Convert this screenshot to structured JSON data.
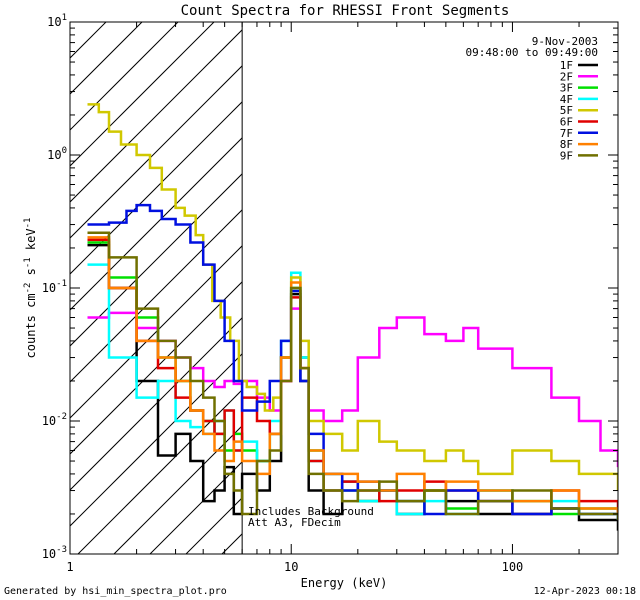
{
  "chart_data": {
    "type": "line",
    "title": "Count Spectra for RHESSI Front Segments",
    "xlabel": "Energy (keV)",
    "ylabel_parts": {
      "a": "counts cm",
      "a_sup": "-2",
      "b": " s",
      "b_sup": "-1",
      "c": " keV",
      "c_sup": "-1"
    },
    "x_scale": "log",
    "y_scale": "log",
    "xlim": [
      1,
      300
    ],
    "ylim": [
      0.001,
      10
    ],
    "x_ticks": [
      {
        "v": 1,
        "label": "1"
      },
      {
        "v": 10,
        "label": "10"
      },
      {
        "v": 100,
        "label": "100"
      }
    ],
    "y_ticks": [
      {
        "v": 0.001,
        "base": "10",
        "exp": "-3"
      },
      {
        "v": 0.01,
        "base": "10",
        "exp": "-2"
      },
      {
        "v": 0.1,
        "base": "10",
        "exp": "-1"
      },
      {
        "v": 1,
        "base": "10",
        "exp": "0"
      },
      {
        "v": 10,
        "base": "10",
        "exp": "1"
      }
    ],
    "date": "9-Nov-2003",
    "time_range": "09:48:00 to 09:49:00",
    "shaded_region_max_kev": 6,
    "annotation_lines": [
      "Includes Background",
      "Att A3, FDecim"
    ],
    "series": [
      {
        "name": "1F",
        "color": "#000000",
        "x": [
          1.2,
          1.5,
          2,
          2.5,
          3,
          3.5,
          4,
          4.5,
          5,
          5.5,
          6,
          7,
          8,
          9,
          10,
          11,
          12,
          14,
          17,
          20,
          25,
          30,
          40,
          50,
          70,
          100,
          150,
          200,
          300
        ],
        "y": [
          0.21,
          0.1,
          0.02,
          0.0055,
          0.008,
          0.005,
          0.0025,
          0.003,
          0.0045,
          0.002,
          0.004,
          0.003,
          0.005,
          0.03,
          0.09,
          0.02,
          0.003,
          0.002,
          0.0035,
          0.0025,
          0.003,
          0.002,
          0.003,
          0.0025,
          0.002,
          0.002,
          0.0022,
          0.0018,
          0.0015
        ]
      },
      {
        "name": "2F",
        "color": "#ff00ff",
        "x": [
          1.2,
          1.5,
          2,
          2.5,
          3,
          3.5,
          4,
          4.5,
          5,
          5.5,
          6,
          7,
          8,
          9,
          10,
          11,
          12,
          14,
          17,
          20,
          25,
          30,
          40,
          50,
          60,
          70,
          100,
          150,
          200,
          250,
          300
        ],
        "y": [
          0.06,
          0.065,
          0.05,
          0.04,
          0.03,
          0.025,
          0.02,
          0.018,
          0.02,
          0.019,
          0.02,
          0.015,
          0.012,
          0.02,
          0.07,
          0.03,
          0.012,
          0.01,
          0.012,
          0.03,
          0.05,
          0.06,
          0.045,
          0.04,
          0.05,
          0.035,
          0.025,
          0.015,
          0.01,
          0.006,
          0.0045
        ]
      },
      {
        "name": "3F",
        "color": "#00e000",
        "x": [
          1.2,
          1.5,
          2,
          2.5,
          3,
          3.5,
          4,
          4.5,
          5,
          5.5,
          6,
          7,
          8,
          9,
          10,
          11,
          12,
          14,
          17,
          20,
          25,
          30,
          40,
          50,
          70,
          100,
          150,
          200,
          300
        ],
        "y": [
          0.22,
          0.12,
          0.06,
          0.03,
          0.02,
          0.012,
          0.01,
          0.008,
          0.006,
          0.008,
          0.006,
          0.005,
          0.008,
          0.03,
          0.1,
          0.03,
          0.006,
          0.004,
          0.003,
          0.0025,
          0.003,
          0.0025,
          0.003,
          0.0022,
          0.003,
          0.0025,
          0.002,
          0.0022,
          0.0018
        ]
      },
      {
        "name": "4F",
        "color": "#00ffff",
        "x": [
          1.2,
          1.5,
          2,
          2.5,
          3,
          3.5,
          4,
          4.5,
          5,
          5.5,
          6,
          7,
          8,
          9,
          10,
          11,
          12,
          14,
          17,
          20,
          25,
          30,
          40,
          50,
          70,
          100,
          150,
          200,
          300
        ],
        "y": [
          0.15,
          0.03,
          0.015,
          0.02,
          0.01,
          0.009,
          0.008,
          0.01,
          0.012,
          0.006,
          0.007,
          0.005,
          0.01,
          0.04,
          0.13,
          0.03,
          0.005,
          0.003,
          0.0035,
          0.0025,
          0.003,
          0.002,
          0.0025,
          0.002,
          0.003,
          0.002,
          0.0025,
          0.002,
          0.0018
        ]
      },
      {
        "name": "5F",
        "color": "#d0c800",
        "x": [
          1.2,
          1.35,
          1.5,
          1.7,
          2,
          2.3,
          2.6,
          3,
          3.3,
          3.7,
          4,
          4.4,
          4.8,
          5.3,
          5.8,
          6.3,
          7,
          7.6,
          8.3,
          9,
          10,
          11,
          12,
          14,
          17,
          20,
          25,
          30,
          40,
          50,
          60,
          70,
          100,
          150,
          200,
          300
        ],
        "y": [
          2.4,
          2.1,
          1.5,
          1.2,
          1.0,
          0.8,
          0.55,
          0.4,
          0.35,
          0.25,
          0.15,
          0.08,
          0.06,
          0.04,
          0.02,
          0.018,
          0.016,
          0.012,
          0.015,
          0.03,
          0.12,
          0.04,
          0.01,
          0.008,
          0.006,
          0.01,
          0.007,
          0.006,
          0.005,
          0.006,
          0.005,
          0.004,
          0.006,
          0.005,
          0.004,
          0.003
        ]
      },
      {
        "name": "6F",
        "color": "#e00000",
        "x": [
          1.2,
          1.5,
          2,
          2.5,
          3,
          3.5,
          4,
          4.5,
          5,
          5.5,
          6,
          7,
          8,
          9,
          10,
          11,
          12,
          14,
          17,
          20,
          25,
          30,
          40,
          50,
          70,
          100,
          150,
          200,
          300
        ],
        "y": [
          0.23,
          0.1,
          0.04,
          0.025,
          0.015,
          0.012,
          0.01,
          0.008,
          0.012,
          0.006,
          0.015,
          0.01,
          0.008,
          0.02,
          0.085,
          0.025,
          0.005,
          0.003,
          0.0035,
          0.003,
          0.0025,
          0.003,
          0.0035,
          0.003,
          0.0025,
          0.002,
          0.003,
          0.0025,
          0.002
        ]
      },
      {
        "name": "7F",
        "color": "#0010e0",
        "x": [
          1.2,
          1.5,
          1.8,
          2,
          2.3,
          2.6,
          3,
          3.5,
          4,
          4.5,
          5,
          5.5,
          6,
          7,
          8,
          9,
          10,
          11,
          12,
          14,
          17,
          20,
          25,
          30,
          40,
          50,
          70,
          100,
          150,
          200,
          300
        ],
        "y": [
          0.3,
          0.31,
          0.38,
          0.42,
          0.38,
          0.33,
          0.3,
          0.22,
          0.15,
          0.08,
          0.04,
          0.02,
          0.012,
          0.014,
          0.02,
          0.04,
          0.095,
          0.02,
          0.008,
          0.004,
          0.003,
          0.0035,
          0.003,
          0.0025,
          0.002,
          0.003,
          0.0025,
          0.002,
          0.0022,
          0.002,
          0.0018
        ]
      },
      {
        "name": "8F",
        "color": "#ff8000",
        "x": [
          1.2,
          1.5,
          2,
          2.5,
          3,
          3.5,
          4,
          4.5,
          5,
          5.5,
          6,
          7,
          8,
          9,
          10,
          11,
          12,
          14,
          17,
          20,
          25,
          30,
          40,
          50,
          70,
          100,
          150,
          200,
          300
        ],
        "y": [
          0.24,
          0.1,
          0.04,
          0.03,
          0.02,
          0.012,
          0.008,
          0.006,
          0.005,
          0.007,
          0.005,
          0.004,
          0.008,
          0.03,
          0.11,
          0.025,
          0.006,
          0.004,
          0.004,
          0.0035,
          0.003,
          0.004,
          0.003,
          0.0035,
          0.003,
          0.0025,
          0.003,
          0.0022,
          0.002
        ]
      },
      {
        "name": "9F",
        "color": "#707000",
        "x": [
          1.2,
          1.5,
          2,
          2.5,
          3,
          3.5,
          4,
          4.5,
          5,
          5.5,
          6,
          7,
          8,
          9,
          10,
          11,
          12,
          14,
          17,
          20,
          25,
          30,
          40,
          50,
          70,
          100,
          150,
          200,
          300
        ],
        "y": [
          0.26,
          0.17,
          0.07,
          0.04,
          0.03,
          0.02,
          0.015,
          0.01,
          0.004,
          0.003,
          0.002,
          0.005,
          0.006,
          0.02,
          0.1,
          0.025,
          0.004,
          0.003,
          0.0025,
          0.003,
          0.0035,
          0.0025,
          0.003,
          0.002,
          0.0025,
          0.003,
          0.0022,
          0.002,
          0.0018
        ]
      }
    ]
  },
  "footer": {
    "generated_by": "Generated by hsi_min_spectra_plot.pro",
    "timestamp": "12-Apr-2023 00:18"
  }
}
